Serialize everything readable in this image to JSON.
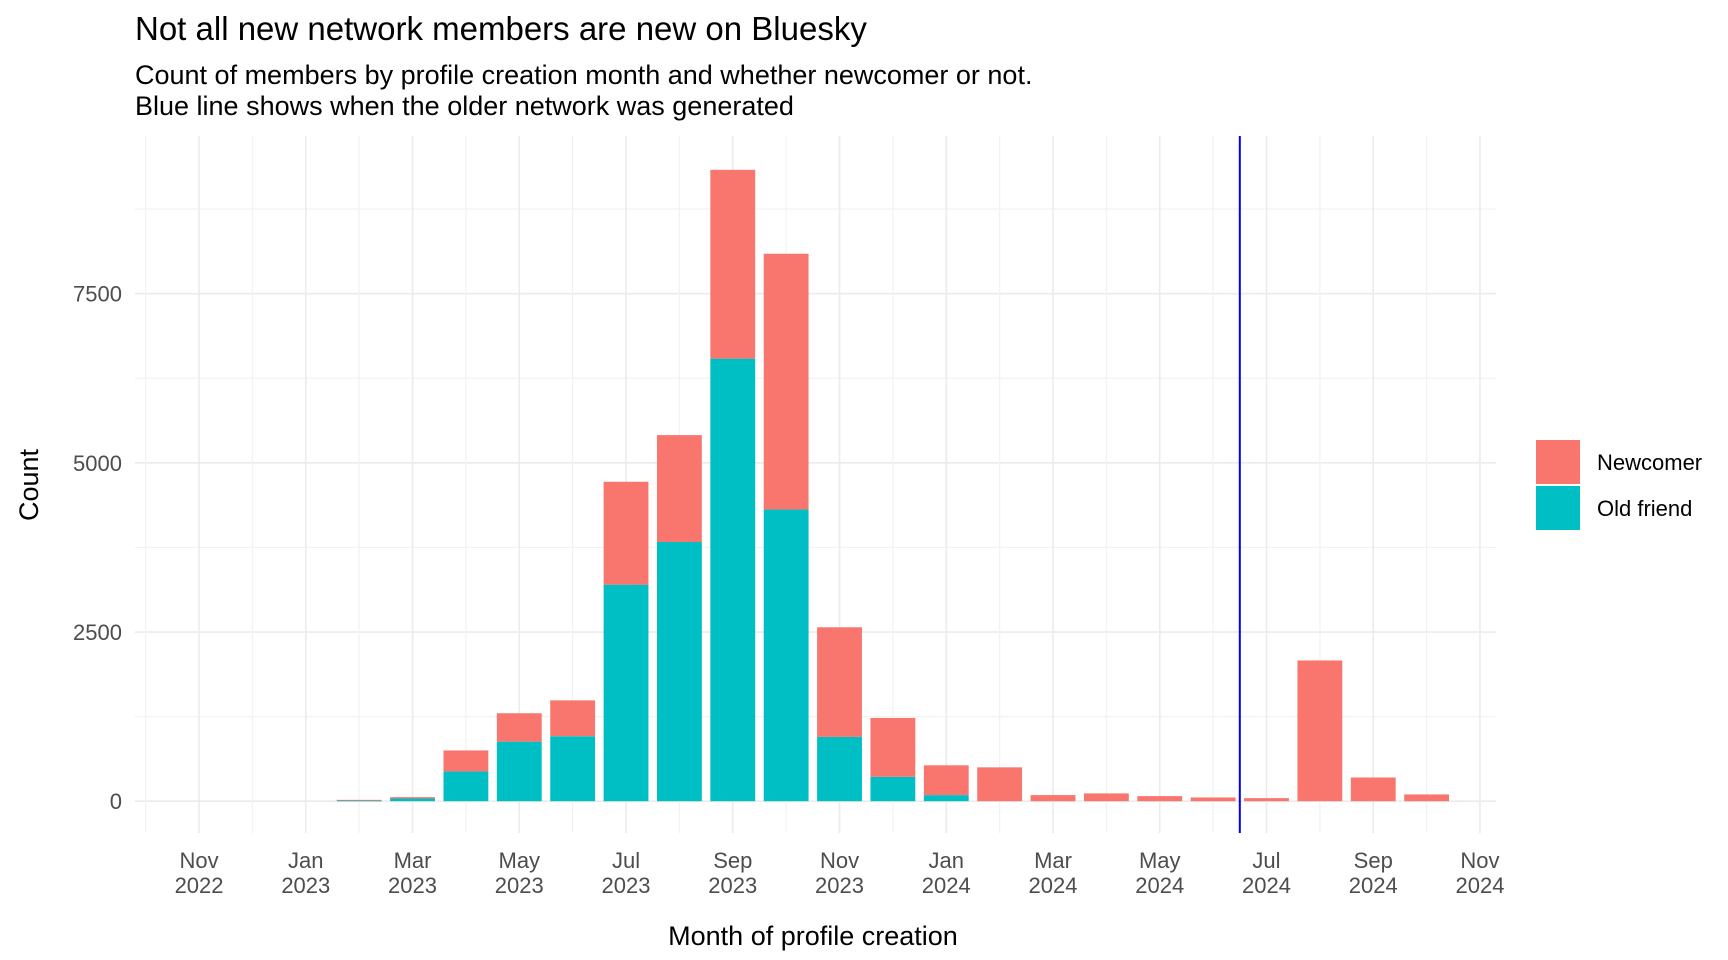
{
  "chart_data": {
    "type": "bar",
    "stacked": true,
    "title": "Not all new network members are new on Bluesky",
    "subtitle": [
      "Count of members by profile creation month and whether newcomer or not.",
      "Blue line shows when the older network was generated"
    ],
    "xlabel": "Month of profile creation",
    "ylabel": "Count",
    "months": [
      "2023-02",
      "2023-03",
      "2023-04",
      "2023-05",
      "2023-06",
      "2023-07",
      "2023-08",
      "2023-09",
      "2023-10",
      "2023-11",
      "2023-12",
      "2024-01",
      "2024-02",
      "2024-03",
      "2024-04",
      "2024-05",
      "2024-06",
      "2024-07",
      "2024-08",
      "2024-09",
      "2024-10"
    ],
    "series": [
      {
        "name": "Old friend",
        "color": "#00BFC4",
        "values": [
          10,
          40,
          440,
          880,
          960,
          3200,
          3830,
          6540,
          4310,
          950,
          360,
          90,
          0,
          0,
          0,
          0,
          0,
          0,
          0,
          0,
          0
        ]
      },
      {
        "name": "Newcomer",
        "color": "#F8766D",
        "values": [
          10,
          20,
          310,
          420,
          530,
          1520,
          1580,
          2790,
          3780,
          1620,
          870,
          440,
          500,
          90,
          115,
          75,
          55,
          45,
          2080,
          350,
          100
        ]
      }
    ],
    "x_ticks": [
      {
        "date": "2022-11",
        "label": [
          "Nov",
          "2022"
        ]
      },
      {
        "date": "2023-01",
        "label": [
          "Jan",
          "2023"
        ]
      },
      {
        "date": "2023-03",
        "label": [
          "Mar",
          "2023"
        ]
      },
      {
        "date": "2023-05",
        "label": [
          "May",
          "2023"
        ]
      },
      {
        "date": "2023-07",
        "label": [
          "Jul",
          "2023"
        ]
      },
      {
        "date": "2023-09",
        "label": [
          "Sep",
          "2023"
        ]
      },
      {
        "date": "2023-11",
        "label": [
          "Nov",
          "2023"
        ]
      },
      {
        "date": "2024-01",
        "label": [
          "Jan",
          "2024"
        ]
      },
      {
        "date": "2024-03",
        "label": [
          "Mar",
          "2024"
        ]
      },
      {
        "date": "2024-05",
        "label": [
          "May",
          "2024"
        ]
      },
      {
        "date": "2024-07",
        "label": [
          "Jul",
          "2024"
        ]
      },
      {
        "date": "2024-09",
        "label": [
          "Sep",
          "2024"
        ]
      },
      {
        "date": "2024-11",
        "label": [
          "Nov",
          "2024"
        ]
      }
    ],
    "y_ticks": [
      0,
      2500,
      5000,
      7500
    ],
    "ylim": [
      -470,
      9830
    ],
    "xlim": [
      "2022-10",
      "2024-11"
    ],
    "vline": {
      "date": "2024-06-16",
      "color": "#0000FF"
    },
    "legend_position": "right",
    "grid": true,
    "theme": "minimal"
  }
}
